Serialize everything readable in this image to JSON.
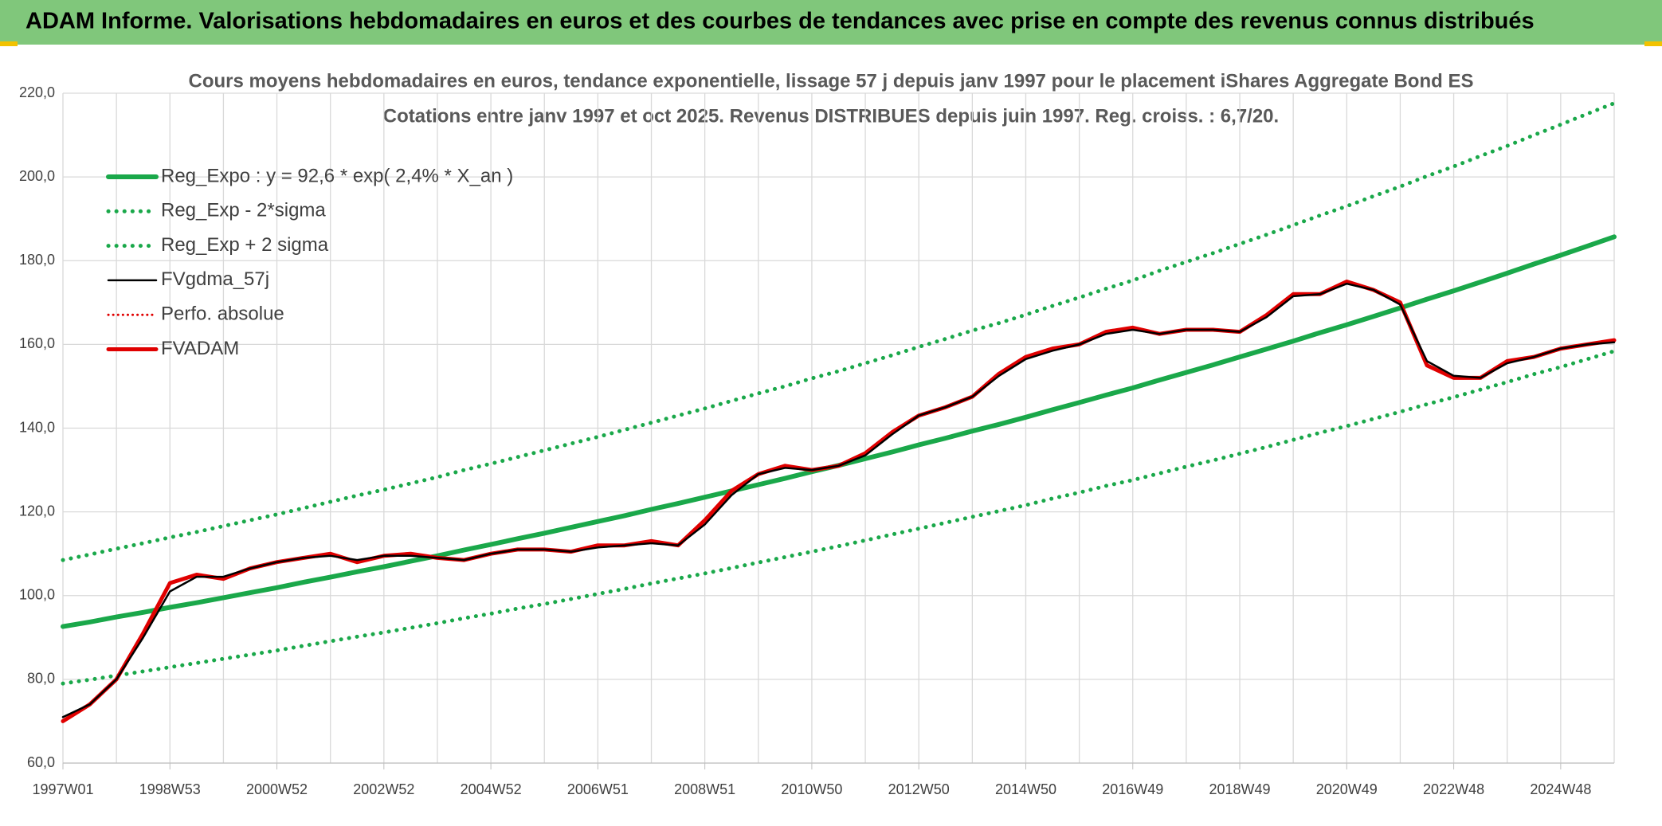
{
  "header": {
    "title": "ADAM Informe. Valorisations hebdomadaires en euros et des courbes de tendances avec prise en compte des revenus connus distribués"
  },
  "chart_data": {
    "type": "line",
    "title": "Cours moyens hebdomadaires en euros, tendance exponentielle, lissage 57 j depuis janv 1997 pour le placement iShares Aggregate Bond ES",
    "subtitle": "Cotations entre janv 1997 et oct 2025. Revenus DISTRIBUES depuis juin 1997. Reg. croiss. : 6,7/20.",
    "categories": [
      "1997W01",
      null,
      null,
      null,
      "1998W53",
      null,
      null,
      null,
      "2000W52",
      null,
      null,
      null,
      "2002W52",
      null,
      null,
      null,
      "2004W52",
      null,
      null,
      null,
      "2006W51",
      null,
      null,
      null,
      "2008W51",
      null,
      null,
      null,
      "2010W50",
      null,
      null,
      null,
      "2012W50",
      null,
      null,
      null,
      "2014W50",
      null,
      null,
      null,
      "2016W49",
      null,
      null,
      null,
      "2018W49",
      null,
      null,
      null,
      "2020W49",
      null,
      null,
      null,
      "2022W48",
      null,
      null,
      null,
      "2024W48",
      null,
      null
    ],
    "ylim": [
      60,
      220
    ],
    "yticks": [
      {
        "value": 60,
        "label": "60,0"
      },
      {
        "value": 80,
        "label": "80,0"
      },
      {
        "value": 100,
        "label": "100,0"
      },
      {
        "value": 120,
        "label": "120,0"
      },
      {
        "value": 140,
        "label": "140,0"
      },
      {
        "value": 160,
        "label": "160,0"
      },
      {
        "value": 180,
        "label": "180,0"
      },
      {
        "value": 200,
        "label": "200,0"
      },
      {
        "value": 220,
        "label": "220,0"
      }
    ],
    "grid": true,
    "series": [
      {
        "name": "Reg_Expo : y = 92,6 * exp( 2,4% *  X_an )",
        "color": "#1aa84a",
        "style": "solid",
        "values": [
          92.6,
          93.7,
          94.9,
          96.0,
          97.2,
          98.3,
          99.5,
          100.7,
          101.9,
          103.2,
          104.4,
          105.7,
          106.9,
          108.2,
          109.5,
          110.9,
          112.2,
          113.6,
          114.9,
          116.3,
          117.7,
          119.1,
          120.6,
          122.0,
          123.5,
          125.0,
          126.5,
          128.0,
          129.6,
          131.1,
          132.7,
          134.3,
          136.0,
          137.6,
          139.3,
          140.9,
          142.6,
          144.4,
          146.1,
          147.9,
          149.6,
          151.5,
          153.3,
          155.1,
          157.0,
          158.9,
          160.8,
          162.8,
          164.7,
          166.7,
          168.7,
          170.8,
          172.8,
          174.9,
          177.0,
          179.2,
          181.3,
          183.5,
          185.7
        ]
      },
      {
        "name": "Reg_Exp - 2*sigma",
        "color": "#1aa84a",
        "style": "dotted",
        "values": [
          79.0,
          79.9,
          80.9,
          81.9,
          82.9,
          83.9,
          84.9,
          85.9,
          86.9,
          88.0,
          89.1,
          90.2,
          91.2,
          92.3,
          93.4,
          94.6,
          95.7,
          96.9,
          98.0,
          99.2,
          100.4,
          101.6,
          102.9,
          104.1,
          105.3,
          106.6,
          107.9,
          109.2,
          110.5,
          111.8,
          113.2,
          114.6,
          116.0,
          117.4,
          118.8,
          120.2,
          121.6,
          123.2,
          124.6,
          126.2,
          127.6,
          129.2,
          130.8,
          132.3,
          133.9,
          135.5,
          137.2,
          138.9,
          140.5,
          142.2,
          143.9,
          145.7,
          147.4,
          149.2,
          151.0,
          152.9,
          154.6,
          156.5,
          158.4
        ]
      },
      {
        "name": "Reg_Exp + 2 sigma",
        "color": "#1aa84a",
        "style": "dotted",
        "values": [
          108.5,
          109.8,
          111.2,
          112.5,
          113.9,
          115.2,
          116.6,
          118.0,
          119.4,
          120.9,
          122.4,
          123.9,
          125.3,
          126.8,
          128.3,
          130.0,
          131.5,
          133.1,
          134.7,
          136.3,
          137.9,
          139.6,
          141.3,
          143.0,
          144.7,
          146.5,
          148.3,
          150.0,
          151.9,
          153.6,
          155.5,
          157.4,
          159.4,
          161.3,
          163.3,
          165.1,
          167.1,
          169.2,
          171.2,
          173.3,
          175.3,
          177.6,
          179.7,
          181.8,
          184.0,
          186.2,
          188.5,
          190.8,
          193.0,
          195.4,
          197.7,
          200.2,
          202.5,
          205.0,
          207.4,
          210.0,
          212.5,
          215.1,
          217.6
        ]
      },
      {
        "name": "FVgdma_57j",
        "color": "#000000",
        "style": "solid",
        "values": [
          71,
          74,
          80,
          90,
          101,
          104.5,
          104.5,
          106.5,
          108,
          109,
          109.5,
          108.5,
          109.5,
          109.5,
          109,
          108.5,
          110,
          111,
          111,
          110.5,
          111.5,
          112,
          112.5,
          112,
          117,
          124,
          129,
          130.5,
          130,
          131,
          133.5,
          138.5,
          143,
          145,
          147.5,
          152.5,
          156.5,
          158.5,
          160,
          162.5,
          163.5,
          162.5,
          163.5,
          163.5,
          163,
          166.5,
          171.5,
          172,
          174.5,
          173,
          169.5,
          156,
          152.5,
          152,
          155.5,
          157,
          159,
          160,
          160.5
        ]
      },
      {
        "name": "Perfo. absolue",
        "color": "#e00000",
        "style": "dotted",
        "values": [
          70,
          74,
          80,
          91,
          103,
          105,
          104,
          106.5,
          108,
          109,
          110,
          108,
          109.5,
          110,
          109,
          108.5,
          110,
          111,
          111,
          110.5,
          112,
          112,
          113,
          112,
          118,
          125,
          129,
          131,
          130,
          131,
          134,
          139,
          143,
          145,
          147.5,
          153,
          157,
          159,
          160,
          163,
          164,
          162.5,
          163.5,
          163.5,
          163,
          167,
          172,
          172,
          175,
          173,
          170,
          155,
          152,
          152,
          156,
          157,
          159,
          160,
          161
        ]
      },
      {
        "name": "FVADAM",
        "color": "#e00000",
        "style": "solid",
        "values": [
          70,
          74,
          80,
          91,
          103,
          105,
          104,
          106.5,
          108,
          109,
          110,
          108,
          109.5,
          110,
          109,
          108.5,
          110,
          111,
          111,
          110.5,
          112,
          112,
          113,
          112,
          118,
          125,
          129,
          131,
          130,
          131,
          134,
          139,
          143,
          145,
          147.5,
          153,
          157,
          159,
          160,
          163,
          164,
          162.5,
          163.5,
          163.5,
          163,
          167,
          172,
          172,
          175,
          173,
          170,
          155,
          152,
          152,
          156,
          157,
          159,
          160,
          161
        ]
      }
    ]
  }
}
